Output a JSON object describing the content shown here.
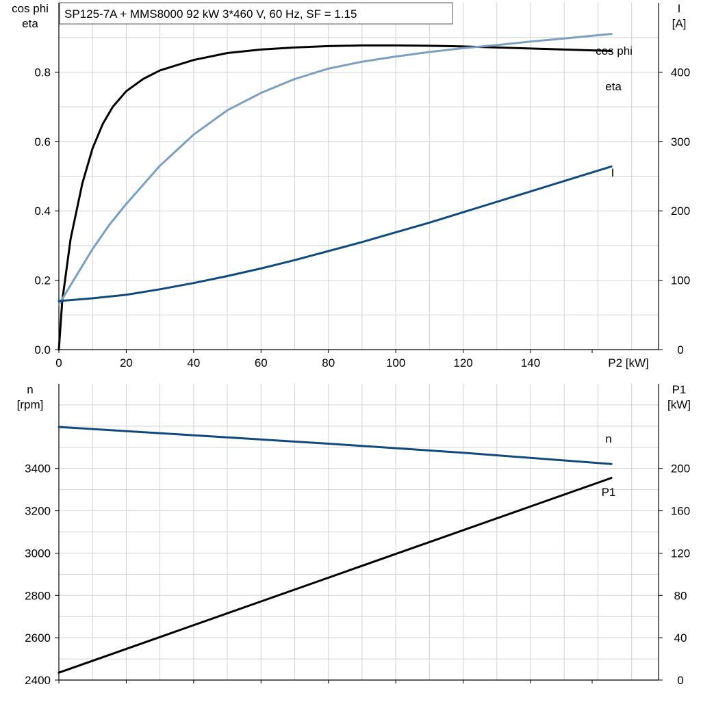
{
  "title": "SP125-7A + MMS8000   92 kW   3*460 V, 60 Hz, SF = 1.15",
  "colors": {
    "eta": "#000000",
    "cos_phi": "#7a9fc0",
    "I": "#0f4a7e",
    "n": "#0f4a7e",
    "P1": "#000000",
    "grid": "#d2d2d2"
  },
  "chart_data": [
    {
      "type": "line",
      "name": "top",
      "left_axis_label": [
        "cos phi",
        "eta"
      ],
      "right_axis_label": [
        "I",
        "[A]"
      ],
      "xlabel": "P2 [kW]",
      "xlim": [
        0,
        178
      ],
      "xticks": [
        0,
        20,
        40,
        60,
        80,
        100,
        120,
        140
      ],
      "ylim_left": [
        0,
        1.0
      ],
      "yticks_left": [
        "0.0",
        "0.2",
        "0.4",
        "0.6",
        "0.8"
      ],
      "ylim_right": [
        0,
        500
      ],
      "yticks_right": [
        "0",
        "100",
        "200",
        "300",
        "400"
      ],
      "grid": true,
      "series": [
        {
          "name": "eta",
          "axis": "left",
          "color": "#000000",
          "x": [
            0,
            1,
            3.5,
            7,
            10,
            13,
            16,
            20,
            25,
            30,
            40,
            50,
            60,
            70,
            80,
            90,
            100,
            110,
            120,
            130,
            140,
            150,
            164
          ],
          "y": [
            0,
            0.14,
            0.32,
            0.48,
            0.58,
            0.65,
            0.7,
            0.745,
            0.78,
            0.805,
            0.835,
            0.855,
            0.865,
            0.871,
            0.875,
            0.877,
            0.877,
            0.876,
            0.874,
            0.871,
            0.868,
            0.865,
            0.861
          ]
        },
        {
          "name": "cos phi",
          "axis": "left",
          "color": "#7a9fc0",
          "x": [
            0,
            5,
            10,
            15,
            20,
            30,
            40,
            50,
            60,
            70,
            80,
            90,
            100,
            110,
            120,
            130,
            140,
            150,
            164
          ],
          "y": [
            0.13,
            0.21,
            0.29,
            0.36,
            0.42,
            0.53,
            0.62,
            0.69,
            0.74,
            0.78,
            0.81,
            0.83,
            0.845,
            0.858,
            0.869,
            0.878,
            0.888,
            0.897,
            0.91
          ]
        },
        {
          "name": "I",
          "axis": "right",
          "color": "#0f4a7e",
          "x": [
            0,
            10,
            20,
            30,
            40,
            50,
            60,
            70,
            80,
            90,
            100,
            110,
            120,
            130,
            140,
            150,
            164
          ],
          "y": [
            70,
            74,
            79,
            87,
            96,
            106,
            117,
            129,
            142,
            155,
            169,
            183,
            198,
            213,
            228,
            243,
            264
          ]
        }
      ]
    },
    {
      "type": "line",
      "name": "bottom",
      "left_axis_label": [
        "n",
        "[rpm]"
      ],
      "right_axis_label": [
        "P1",
        "[kW]"
      ],
      "xlim": [
        0,
        178
      ],
      "xticks": [
        0,
        20,
        40,
        60,
        80,
        100,
        120,
        140
      ],
      "ylim_left": [
        2400,
        3800
      ],
      "yticks_left": [
        "2400",
        "2600",
        "2800",
        "3000",
        "3200",
        "3400"
      ],
      "ylim_right": [
        0,
        280
      ],
      "yticks_right": [
        "0",
        "40",
        "80",
        "120",
        "160",
        "200"
      ],
      "grid": true,
      "series": [
        {
          "name": "n",
          "axis": "left",
          "color": "#0f4a7e",
          "x": [
            0,
            40,
            80,
            120,
            164
          ],
          "y": [
            3596,
            3557,
            3517,
            3474,
            3421
          ]
        },
        {
          "name": "P1",
          "axis": "right",
          "color": "#000000",
          "x": [
            0,
            164
          ],
          "y": [
            7,
            191
          ]
        }
      ]
    }
  ]
}
